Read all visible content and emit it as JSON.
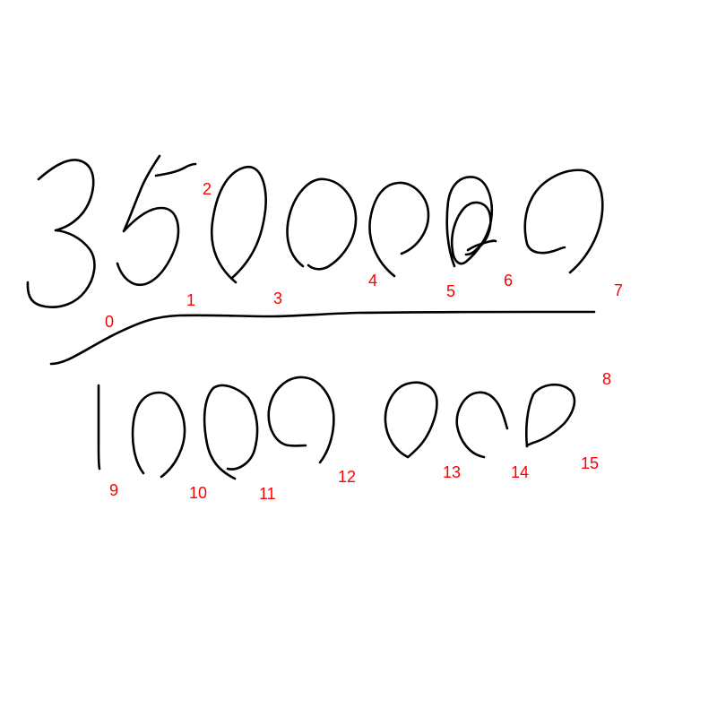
{
  "ink_color": "#000000",
  "label_color": "#ff0000",
  "strokes": [
    {
      "label": "0",
      "glyph": "3"
    },
    {
      "label": "1",
      "glyph": "5"
    },
    {
      "label": "2",
      "glyph": "0"
    },
    {
      "label": "3",
      "glyph": "0"
    },
    {
      "label": "4",
      "glyph": "0"
    },
    {
      "label": "5",
      "glyph": "0"
    },
    {
      "label": "6",
      "glyph": "0"
    },
    {
      "label": "7",
      "glyph": "0"
    },
    {
      "label": "8",
      "glyph": "fraction-bar"
    },
    {
      "label": "9",
      "glyph": "1"
    },
    {
      "label": "10",
      "glyph": "0"
    },
    {
      "label": "11",
      "glyph": "0"
    },
    {
      "label": "12",
      "glyph": "0"
    },
    {
      "label": "13",
      "glyph": "0"
    },
    {
      "label": "14",
      "glyph": "0"
    },
    {
      "label": "15",
      "glyph": "0"
    }
  ]
}
